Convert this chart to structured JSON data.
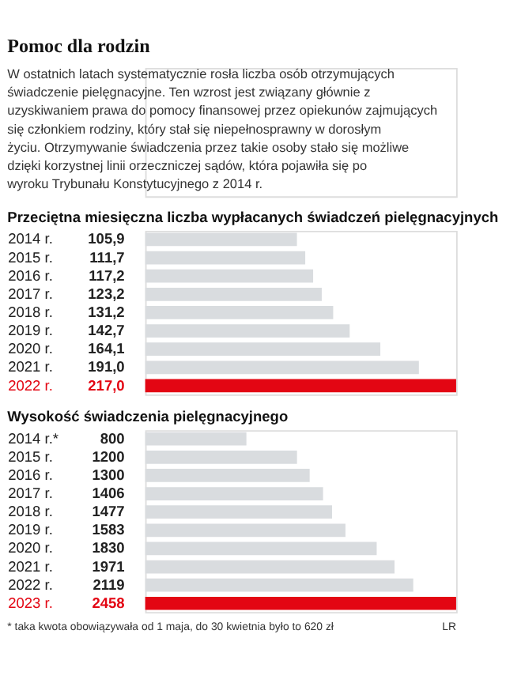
{
  "chart_data": [
    {
      "type": "other",
      "title": "Pomoc dla rodzin",
      "annotations": [
        "W ostatnich latach systematycznie rosła liczba osób otrzymujących świadczenie pielęgnacyjne. Ten wzrost jest związany głównie z uzyskiwaniem prawa do pomocy finansowej przez opiekunów zajmujących się członkiem rodziny, który stał się niepełnosprawny w dorosłym życiu. Otrzymywanie świadczenia przez takie osoby stało się możliwe dzięki korzystnej linii orzeczniczej sądów, która pojawiła się po wyroku Trybunału Konstytucyjnego z 2014 r."
      ]
    },
    {
      "type": "bar",
      "orientation": "horizontal",
      "title": "Przeciętna miesięczna liczba wypłacanych świadczeń pielęgnacyjnych",
      "categories": [
        "2014 r.",
        "2015 r.",
        "2016 r.",
        "2017 r.",
        "2018 r.",
        "2019 r.",
        "2020 r.",
        "2021 r.",
        "2022 r."
      ],
      "values": [
        105.9,
        111.7,
        117.2,
        123.2,
        131.2,
        142.7,
        164.1,
        191.0,
        217.0
      ],
      "value_labels": [
        "105,9",
        "111,7",
        "117,2",
        "123,2",
        "131,2",
        "142,7",
        "164,1",
        "191,0",
        "217,0"
      ],
      "colors": [
        "#d9dcdf",
        "#d9dcdf",
        "#d9dcdf",
        "#d9dcdf",
        "#d9dcdf",
        "#d9dcdf",
        "#d9dcdf",
        "#d9dcdf",
        "#e30613"
      ]
    },
    {
      "type": "bar",
      "orientation": "horizontal",
      "title": "Wysokość świadczenia pielęgnacyjnego",
      "categories": [
        "2014 r.*",
        "2015 r.",
        "2016 r.",
        "2017 r.",
        "2018 r.",
        "2019 r.",
        "2020 r.",
        "2021 r.",
        "2022 r.",
        "2023 r."
      ],
      "values": [
        800,
        1200,
        1300,
        1406,
        1477,
        1583,
        1830,
        1971,
        2119,
        2458
      ],
      "value_labels": [
        "800",
        "1200",
        "1300",
        "1406",
        "1477",
        "1583",
        "1830",
        "1971",
        "2119",
        "2458"
      ],
      "colors": [
        "#d9dcdf",
        "#d9dcdf",
        "#d9dcdf",
        "#d9dcdf",
        "#d9dcdf",
        "#d9dcdf",
        "#d9dcdf",
        "#d9dcdf",
        "#d9dcdf",
        "#e30613"
      ],
      "annotations": [
        "* taka kwota obowiązywała od 1 maja, do 30 kwietnia było to 620 zł",
        "LR"
      ]
    }
  ]
}
